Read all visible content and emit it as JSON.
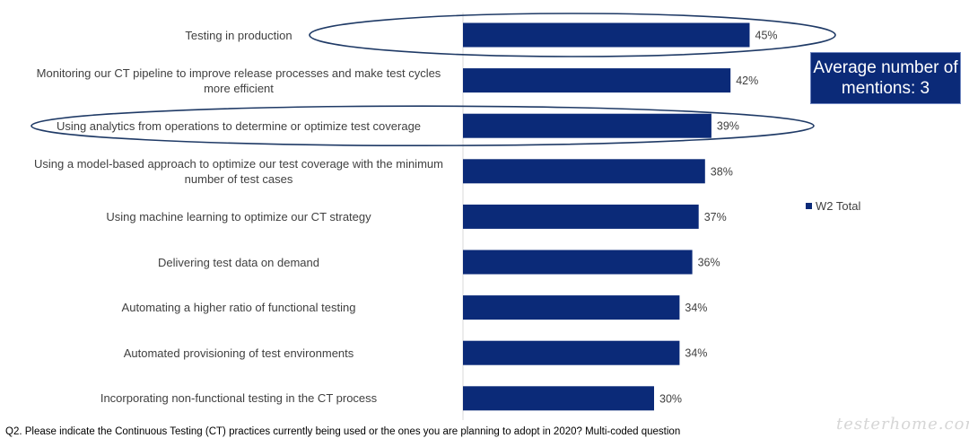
{
  "chart_data": {
    "type": "bar",
    "orientation": "horizontal",
    "categories": [
      "Testing in production",
      "Monitoring our CT pipeline to improve release processes and make test cycles more efficient",
      "Using analytics from operations to determine or optimize test coverage",
      "Using a model-based approach to optimize our test coverage with the minimum number of test cases",
      "Using machine learning to optimize our CT strategy",
      "Delivering test data on demand",
      "Automating a higher ratio of functional testing",
      "Automated provisioning of test environments",
      "Incorporating non-functional testing in the CT process"
    ],
    "series": [
      {
        "name": "W2 Total",
        "values": [
          45,
          42,
          39,
          38,
          37,
          36,
          34,
          34,
          30
        ],
        "color": "#0b2a78"
      }
    ],
    "data_labels": [
      "45%",
      "42%",
      "39%",
      "38%",
      "37%",
      "36%",
      "34%",
      "34%",
      "30%"
    ],
    "xlim": [
      0,
      100
    ],
    "grid": false,
    "legend_position": "right",
    "highlighted_categories": [
      0,
      2
    ]
  },
  "callout": {
    "text": "Average number of mentions: 3",
    "background": "#0b2a78"
  },
  "legend": {
    "label": "W2 Total"
  },
  "footnote": "Q2. Please indicate the Continuous Testing (CT) practices currently  being used or the ones you are planning  to adopt in 2020?  Multi-coded question",
  "watermark": "testerhome.com"
}
